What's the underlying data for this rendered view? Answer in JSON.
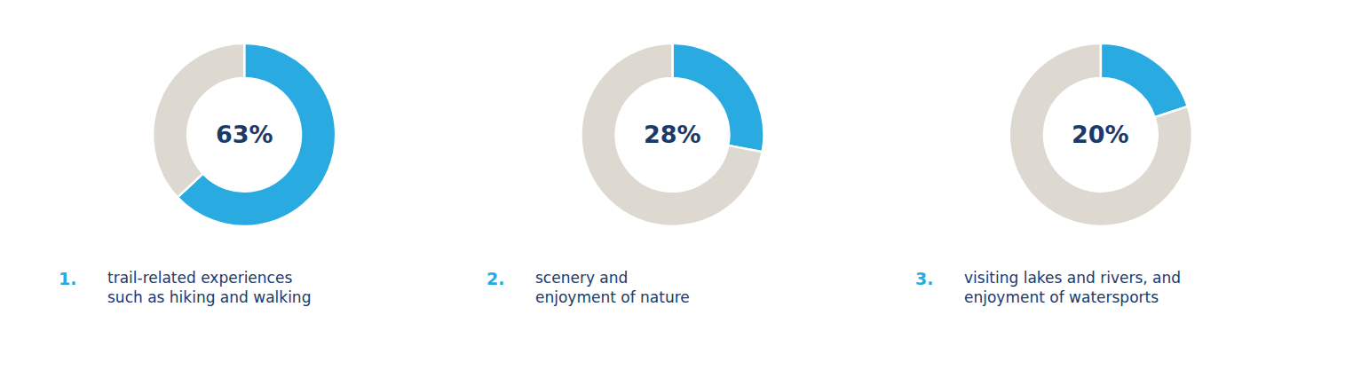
{
  "chart_data": [
    {
      "type": "donut",
      "values": [
        63,
        37
      ],
      "colors": [
        "#29ABE2",
        "#DDD8D0"
      ],
      "annotations": [
        {
          "text": "63%",
          "color": "#1B3A6B"
        },
        {
          "text": "1.",
          "color": "#29ABE2"
        },
        {
          "text": "trail-related experiences\nsuch as hiking and walking",
          "color": "#1B3A6B"
        }
      ]
    },
    {
      "type": "donut",
      "values": [
        28,
        72
      ],
      "colors": [
        "#29ABE2",
        "#DDD8D0"
      ],
      "annotations": [
        {
          "text": "28%",
          "color": "#1B3A6B"
        },
        {
          "text": "2.",
          "color": "#29ABE2"
        },
        {
          "text": "scenery and\nenjoyment of nature",
          "color": "#1B3A6B"
        }
      ]
    },
    {
      "type": "donut",
      "values": [
        20,
        80
      ],
      "colors": [
        "#29ABE2",
        "#DDD8D0"
      ],
      "annotations": [
        {
          "text": "20%",
          "color": "#1B3A6B"
        },
        {
          "text": "3.",
          "color": "#29ABE2"
        },
        {
          "text": "visiting lakes and rivers, and\nenjoyment of watersports",
          "color": "#1B3A6B"
        }
      ]
    }
  ]
}
